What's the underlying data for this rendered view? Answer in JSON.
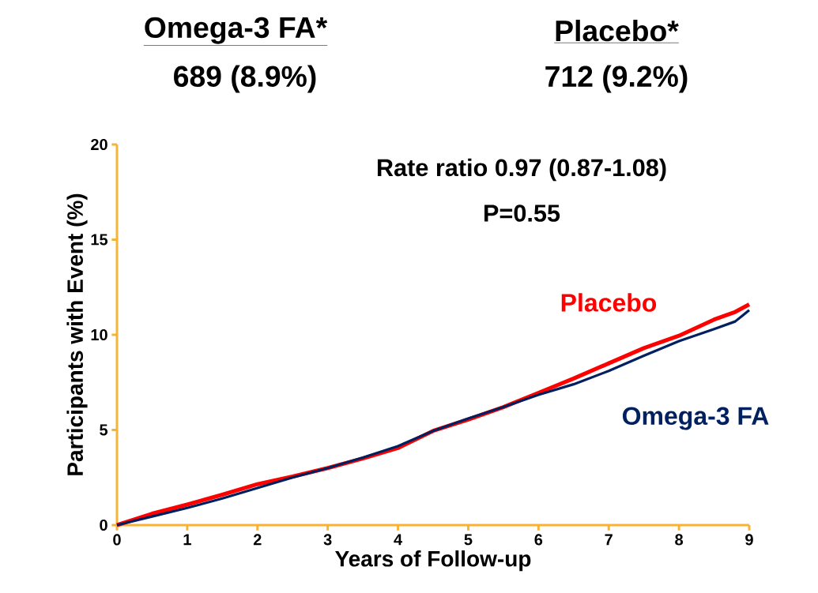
{
  "chart_data": {
    "type": "line",
    "xlabel": "Years of Follow-up",
    "ylabel": "Participants with Event (%)",
    "annotations": [
      "Omega-3 FA*",
      "689 (8.9%)",
      "Placebo*",
      "712 (9.2%)",
      "Rate ratio 0.97 (0.87-1.08)",
      "P=0.55"
    ],
    "x": [
      0,
      0.5,
      1,
      1.5,
      2,
      2.5,
      3,
      3.5,
      4,
      4.5,
      5,
      5.5,
      6,
      6.5,
      7,
      7.5,
      8,
      8.5,
      8.8,
      8.9,
      9
    ],
    "series": [
      {
        "name": "Placebo",
        "color": "#ff0000",
        "values": [
          0,
          0.6,
          1.08,
          1.6,
          2.15,
          2.55,
          3.0,
          3.5,
          4.05,
          4.95,
          5.55,
          6.2,
          6.95,
          7.7,
          8.5,
          9.3,
          9.95,
          10.8,
          11.2,
          11.4,
          11.6
        ]
      },
      {
        "name": "Omega-3 FA",
        "color": "#002060",
        "values": [
          0,
          0.45,
          0.9,
          1.4,
          1.95,
          2.5,
          3.0,
          3.55,
          4.15,
          4.95,
          5.6,
          6.2,
          6.85,
          7.4,
          8.1,
          8.9,
          9.67,
          10.3,
          10.7,
          11.0,
          11.3
        ]
      }
    ],
    "xlim": [
      0,
      9
    ],
    "ylim": [
      0,
      20
    ],
    "xticks": [
      0,
      1,
      2,
      3,
      4,
      5,
      6,
      7,
      8,
      9
    ],
    "yticks": [
      0,
      5,
      10,
      15,
      20
    ],
    "line_style": "solid"
  }
}
